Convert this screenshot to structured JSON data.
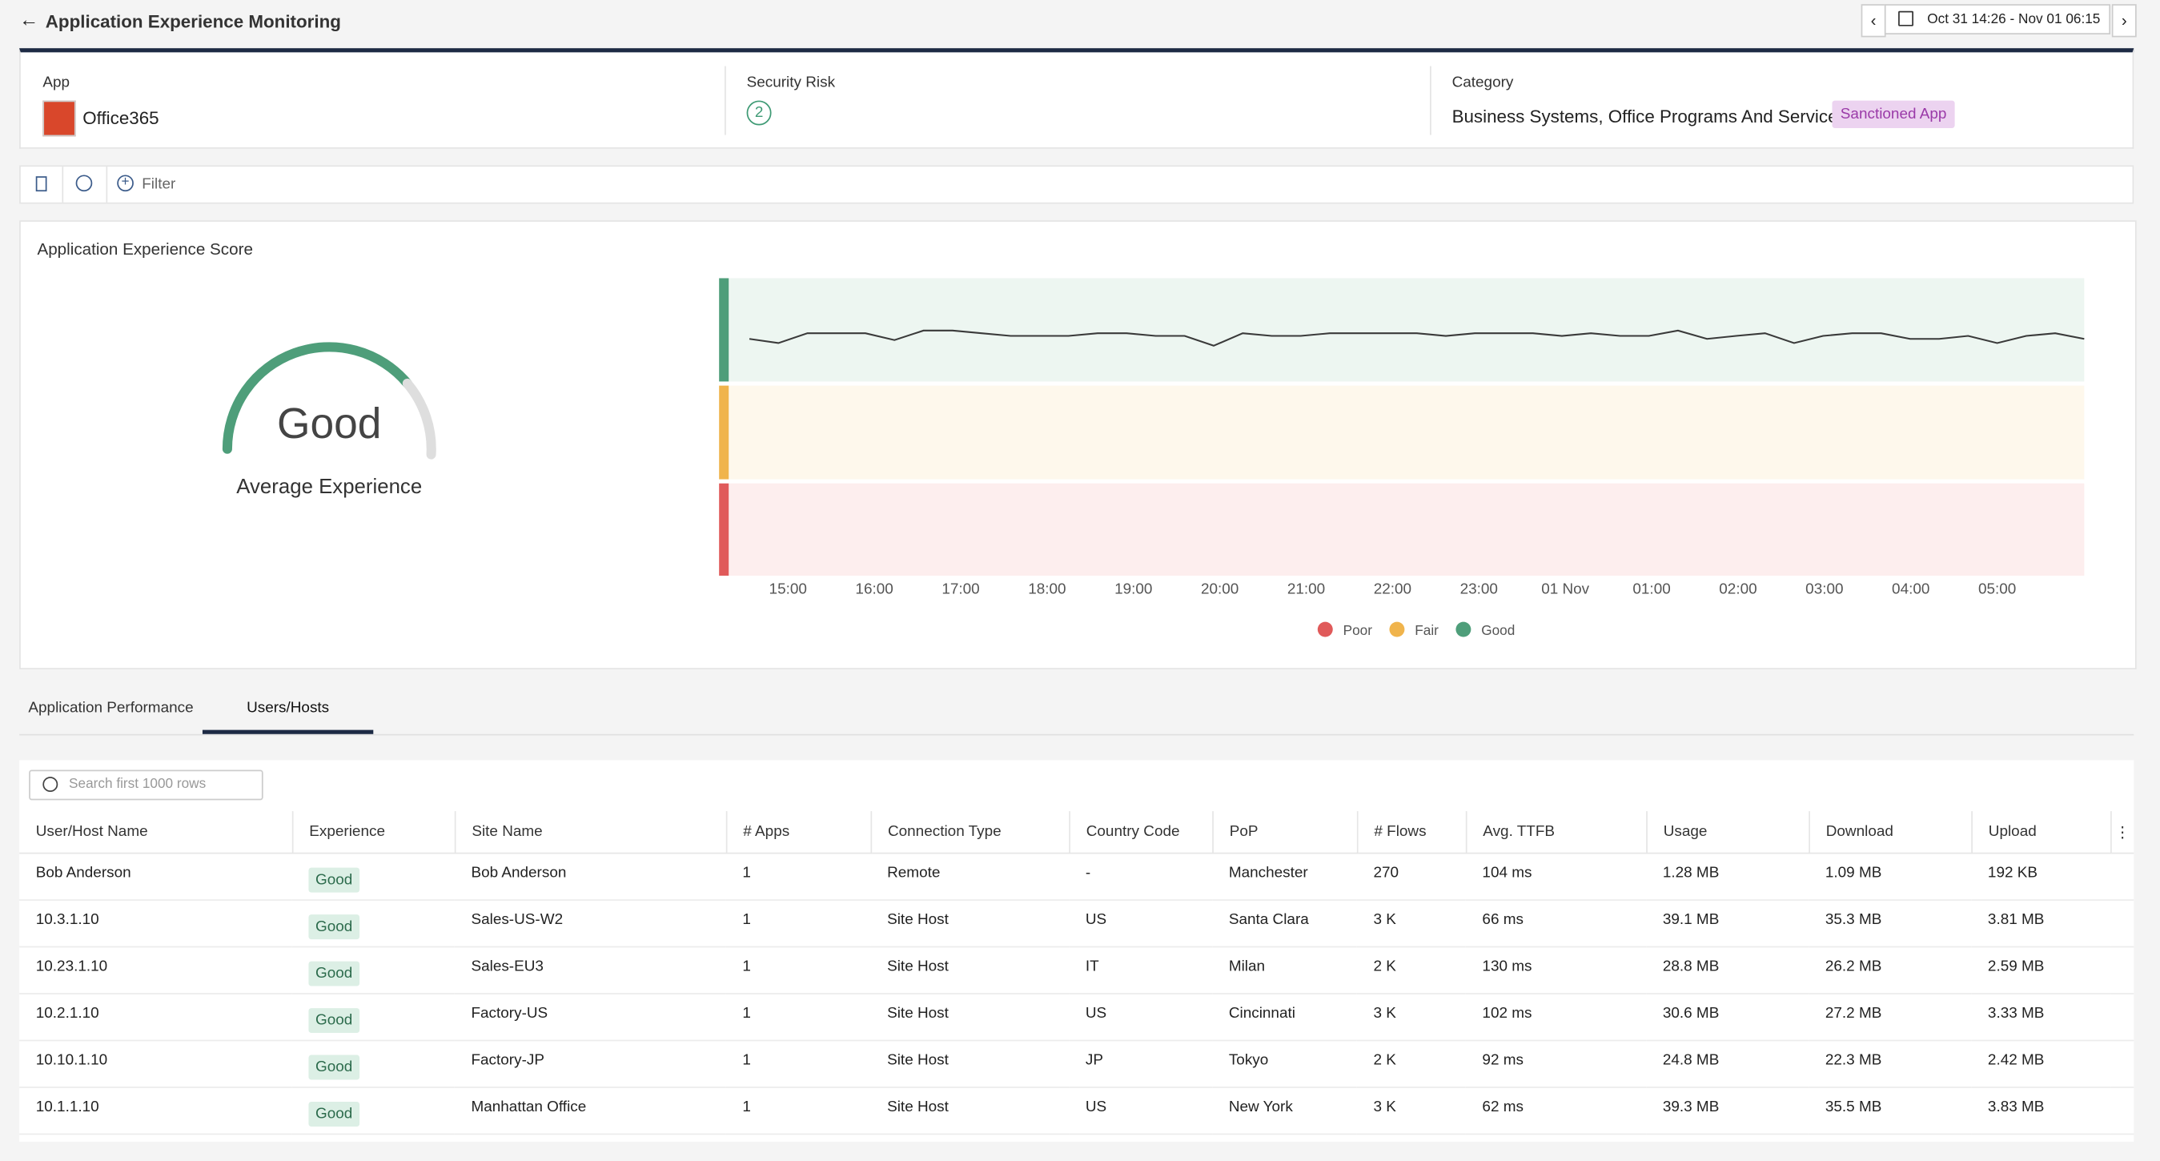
{
  "header": {
    "title": "Application Experience Monitoring",
    "date_range": "Oct 31 14:26 - Nov 01 06:15"
  },
  "summary": {
    "app_label": "App",
    "app_name": "Office365",
    "risk_label": "Security Risk",
    "risk_value": 2,
    "category_label": "Category",
    "category_value": "Business Systems, Office Programs And Services",
    "category_tag": "Sanctioned App"
  },
  "filter": {
    "label": "Filter"
  },
  "score": {
    "title": "Application Experience Score",
    "gauge_value": "Good",
    "gauge_caption": "Average Experience"
  },
  "chart_data": {
    "type": "line",
    "x_labels": [
      "15:00",
      "16:00",
      "17:00",
      "18:00",
      "19:00",
      "20:00",
      "21:00",
      "22:00",
      "23:00",
      "01 Nov",
      "01:00",
      "02:00",
      "03:00",
      "04:00",
      "05:00"
    ],
    "values": [
      79.6,
      78.2,
      81.5,
      81.5,
      81.5,
      79.2,
      82.4,
      82.4,
      81.5,
      80.6,
      80.6,
      80.6,
      81.5,
      81.5,
      80.6,
      80.6,
      77.3,
      81.5,
      80.6,
      80.6,
      81.5,
      81.5,
      81.5,
      81.5,
      80.6,
      81.5,
      81.5,
      81.5,
      80.6,
      81.5,
      80.6,
      80.6,
      82.4,
      79.6,
      80.6,
      81.5,
      78.2,
      80.6,
      81.5,
      81.5,
      79.6,
      79.6,
      80.6,
      78.2,
      80.6,
      81.5,
      79.6
    ],
    "ylim": [
      0,
      100
    ],
    "color": "#3a3a3a",
    "legend": [
      {
        "name": "Poor",
        "color": "#e05a5a"
      },
      {
        "name": "Fair",
        "color": "#f0b44c"
      },
      {
        "name": "Good",
        "color": "#4e9e7a"
      }
    ]
  },
  "tabs": [
    "Application Performance",
    "Users/Hosts"
  ],
  "table": {
    "search_placeholder": "Search first 1000 rows",
    "columns": [
      "User/Host Name",
      "Experience",
      "Site Name",
      "# Apps",
      "Connection Type",
      "Country Code",
      "PoP",
      "# Flows",
      "Avg. TTFB",
      "Usage",
      "Download",
      "Upload"
    ],
    "rows": [
      [
        "Bob Anderson",
        "Good",
        "Bob Anderson",
        1,
        "Remote",
        "-",
        "Manchester",
        270,
        "104 ms",
        "1.28 MB",
        "1.09 MB",
        "192 KB"
      ],
      [
        "10.3.1.10",
        "Good",
        "Sales-US-W2",
        1,
        "Site Host",
        "US",
        "Santa Clara",
        "3 K",
        "66 ms",
        "39.1 MB",
        "35.3 MB",
        "3.81 MB"
      ],
      [
        "10.23.1.10",
        "Good",
        "Sales-EU3",
        1,
        "Site Host",
        "IT",
        "Milan",
        "2 K",
        "130 ms",
        "28.8 MB",
        "26.2 MB",
        "2.59 MB"
      ],
      [
        "10.2.1.10",
        "Good",
        "Factory-US",
        1,
        "Site Host",
        "US",
        "Cincinnati",
        "3 K",
        "102 ms",
        "30.6 MB",
        "27.2 MB",
        "3.33 MB"
      ],
      [
        "10.10.1.10",
        "Good",
        "Factory-JP",
        1,
        "Site Host",
        "JP",
        "Tokyo",
        "2 K",
        "92 ms",
        "24.8 MB",
        "22.3 MB",
        "2.42 MB"
      ],
      [
        "10.1.1.10",
        "Good",
        "Manhattan Office",
        1,
        "Site Host",
        "US",
        "New York",
        "3 K",
        "62 ms",
        "39.3 MB",
        "35.5 MB",
        "3.83 MB"
      ]
    ]
  }
}
